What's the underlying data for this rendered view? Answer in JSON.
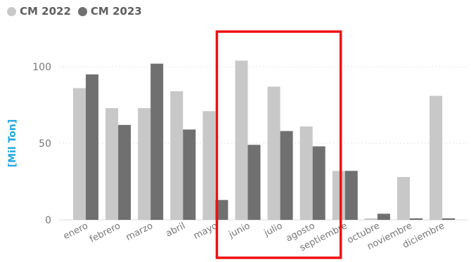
{
  "legend": {
    "items": [
      {
        "label": "CM 2022",
        "color": "#c8c8c8"
      },
      {
        "label": "CM 2023",
        "color": "#707070"
      }
    ]
  },
  "chart_data": {
    "type": "bar",
    "ylabel": "[Mil Ton]",
    "ylim": [
      0,
      110
    ],
    "yticks": [
      0,
      50,
      100
    ],
    "grid": true,
    "legend_position": "top-left",
    "categories": [
      "enero",
      "febrero",
      "marzo",
      "abril",
      "mayo",
      "junio",
      "julio",
      "agosto",
      "septiembre",
      "octubre",
      "noviembre",
      "diciembre"
    ],
    "series": [
      {
        "name": "CM 2022",
        "color": "#c8c8c8",
        "values": [
          86,
          73,
          73,
          84,
          71,
          104,
          87,
          61,
          32,
          1,
          28,
          81
        ]
      },
      {
        "name": "CM 2023",
        "color": "#707070",
        "values": [
          95,
          62,
          102,
          59,
          13,
          49,
          58,
          48,
          32,
          4,
          1,
          1
        ]
      }
    ],
    "highlight": {
      "categories": [
        "junio",
        "julio",
        "agosto"
      ],
      "color": "#ee1111"
    }
  }
}
